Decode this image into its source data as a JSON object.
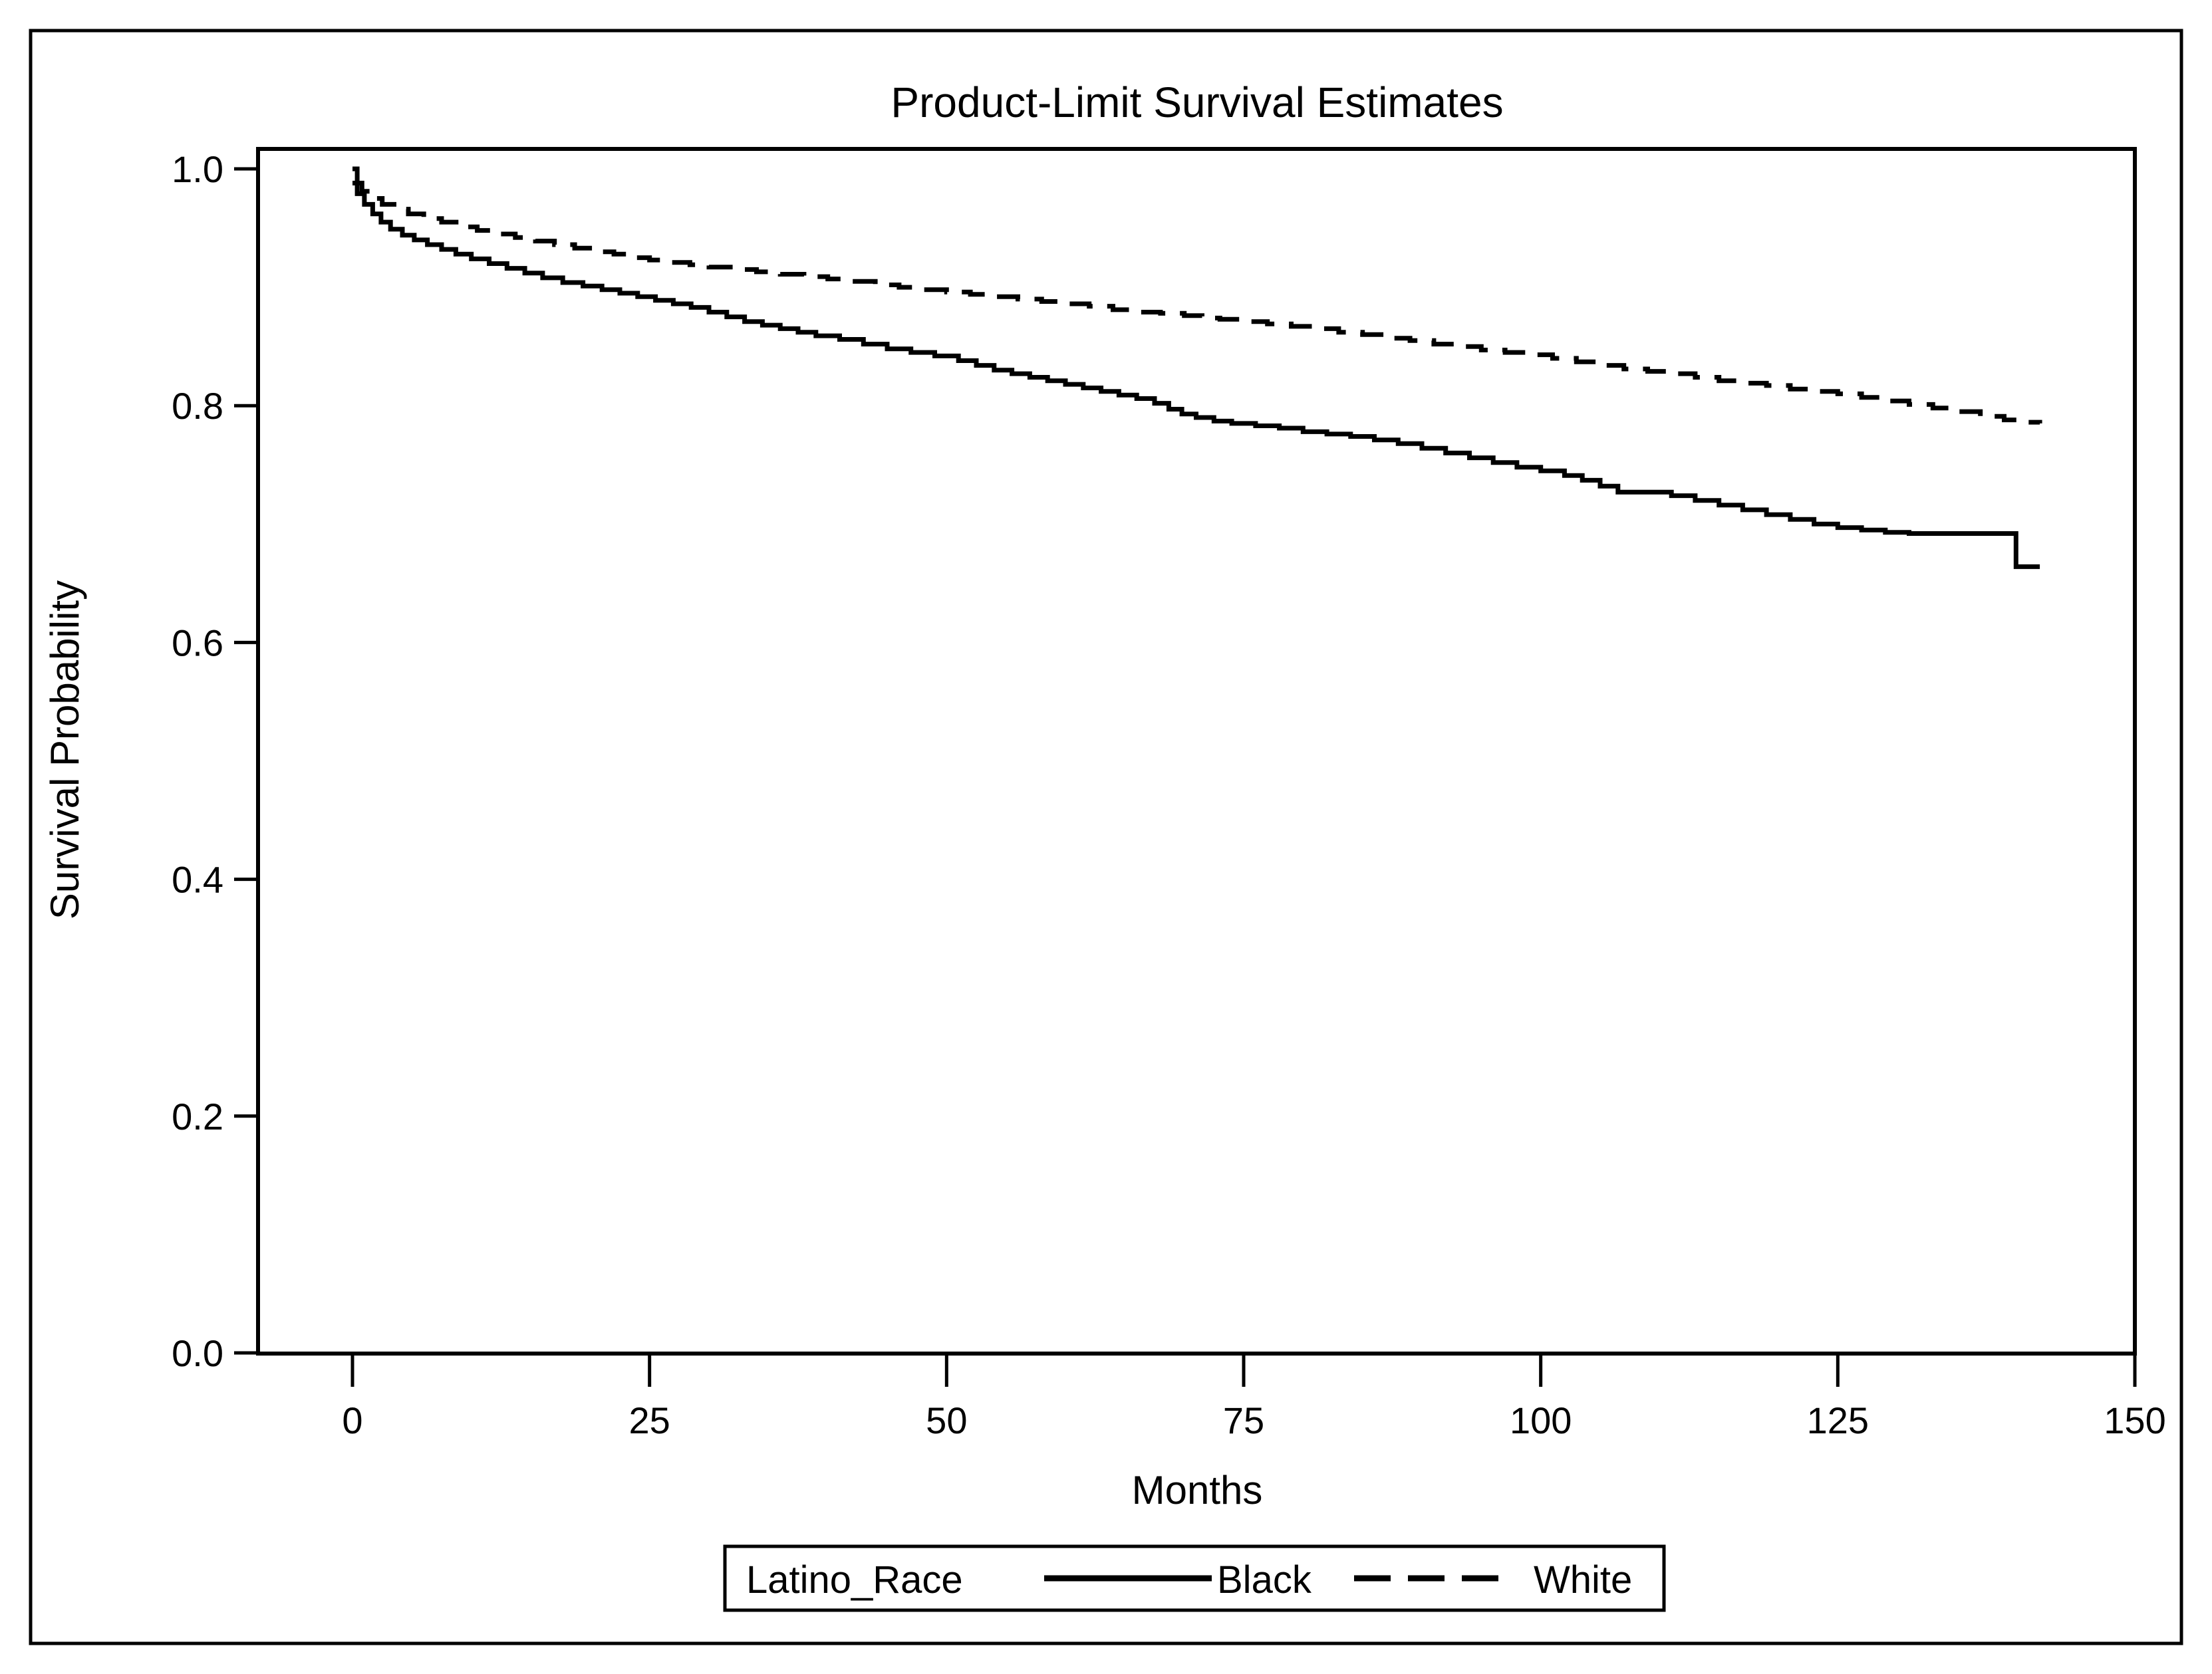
{
  "figure": {
    "title": "Product-Limit Survival Estimates",
    "background_color": "#ffffff",
    "foreground_color": "#000000"
  },
  "chart_data": {
    "type": "line",
    "subtype": "kaplan-meier-step",
    "title": "Product-Limit Survival Estimates",
    "xlabel": "Months",
    "ylabel": "Survival Probability",
    "xlim": [
      0,
      150
    ],
    "ylim": [
      0.0,
      1.0
    ],
    "grid": false,
    "x_ticks": [
      0,
      25,
      50,
      75,
      100,
      125,
      150
    ],
    "x_tick_labels": [
      "0",
      "25",
      "50",
      "75",
      "100",
      "125",
      "150"
    ],
    "y_ticks": [
      0.0,
      0.2,
      0.4,
      0.6,
      0.8,
      1.0
    ],
    "y_tick_labels": [
      "0.0",
      "0.2",
      "0.4",
      "0.6",
      "0.8",
      "1.0"
    ],
    "legend": {
      "title": "Latino_Race",
      "position": "bottom-center",
      "entries": [
        {
          "label": "Black",
          "line_style": "solid",
          "color": "#000000"
        },
        {
          "label": "White",
          "line_style": "dashed",
          "color": "#000000"
        }
      ]
    },
    "series": [
      {
        "name": "Black",
        "line_style": "solid",
        "color": "#000000",
        "points": [
          [
            0,
            1.0
          ],
          [
            0.4,
            0.979
          ],
          [
            1,
            0.97
          ],
          [
            1.7,
            0.962
          ],
          [
            2.4,
            0.955
          ],
          [
            3.2,
            0.949
          ],
          [
            4.2,
            0.944
          ],
          [
            5.2,
            0.94
          ],
          [
            6.3,
            0.936
          ],
          [
            7.5,
            0.932
          ],
          [
            8.7,
            0.928
          ],
          [
            10,
            0.924
          ],
          [
            11.5,
            0.92
          ],
          [
            13,
            0.916
          ],
          [
            14.5,
            0.912
          ],
          [
            16,
            0.908
          ],
          [
            17.7,
            0.904
          ],
          [
            19.4,
            0.901
          ],
          [
            21,
            0.898
          ],
          [
            22.5,
            0.895
          ],
          [
            24,
            0.892
          ],
          [
            25.5,
            0.889
          ],
          [
            27,
            0.886
          ],
          [
            28.5,
            0.883
          ],
          [
            30,
            0.879
          ],
          [
            31.5,
            0.875
          ],
          [
            33,
            0.871
          ],
          [
            34.5,
            0.868
          ],
          [
            36,
            0.865
          ],
          [
            37.5,
            0.862
          ],
          [
            39,
            0.859
          ],
          [
            41,
            0.856
          ],
          [
            43,
            0.852
          ],
          [
            45,
            0.848
          ],
          [
            47,
            0.845
          ],
          [
            49,
            0.842
          ],
          [
            51,
            0.838
          ],
          [
            52.5,
            0.834
          ],
          [
            54,
            0.83
          ],
          [
            55.5,
            0.827
          ],
          [
            57,
            0.824
          ],
          [
            58.5,
            0.821
          ],
          [
            60,
            0.818
          ],
          [
            61.5,
            0.815
          ],
          [
            63,
            0.812
          ],
          [
            64.5,
            0.809
          ],
          [
            66,
            0.806
          ],
          [
            67.5,
            0.802
          ],
          [
            68.7,
            0.797
          ],
          [
            69.8,
            0.793
          ],
          [
            71,
            0.79
          ],
          [
            72.5,
            0.787
          ],
          [
            74,
            0.785
          ],
          [
            76,
            0.783
          ],
          [
            78,
            0.781
          ],
          [
            80,
            0.778
          ],
          [
            82,
            0.776
          ],
          [
            84,
            0.774
          ],
          [
            86,
            0.771
          ],
          [
            88,
            0.768
          ],
          [
            90,
            0.764
          ],
          [
            92,
            0.76
          ],
          [
            94,
            0.756
          ],
          [
            96,
            0.752
          ],
          [
            98,
            0.748
          ],
          [
            100,
            0.745
          ],
          [
            102,
            0.741
          ],
          [
            103.5,
            0.737
          ],
          [
            105,
            0.732
          ],
          [
            106.5,
            0.727
          ],
          [
            111,
            0.724
          ],
          [
            113,
            0.72
          ],
          [
            115,
            0.716
          ],
          [
            117,
            0.712
          ],
          [
            119,
            0.708
          ],
          [
            121,
            0.704
          ],
          [
            123,
            0.7
          ],
          [
            125,
            0.697
          ],
          [
            127,
            0.695
          ],
          [
            129,
            0.693
          ],
          [
            131,
            0.692
          ],
          [
            140,
            0.664
          ],
          [
            142,
            0.664
          ]
        ]
      },
      {
        "name": "White",
        "line_style": "dashed",
        "color": "#000000",
        "points": [
          [
            0,
            0.988
          ],
          [
            0.8,
            0.981
          ],
          [
            1.6,
            0.975
          ],
          [
            2.5,
            0.97
          ],
          [
            3.5,
            0.966
          ],
          [
            4.7,
            0.962
          ],
          [
            6,
            0.958
          ],
          [
            7.5,
            0.955
          ],
          [
            9,
            0.951
          ],
          [
            10.5,
            0.948
          ],
          [
            12,
            0.945
          ],
          [
            13.7,
            0.942
          ],
          [
            15.4,
            0.939
          ],
          [
            17,
            0.936
          ],
          [
            18.7,
            0.933
          ],
          [
            20.4,
            0.93
          ],
          [
            22,
            0.928
          ],
          [
            23.5,
            0.925
          ],
          [
            25,
            0.923
          ],
          [
            26.7,
            0.921
          ],
          [
            28.4,
            0.919
          ],
          [
            30,
            0.917
          ],
          [
            32,
            0.915
          ],
          [
            34,
            0.913
          ],
          [
            36,
            0.911
          ],
          [
            38,
            0.909
          ],
          [
            40,
            0.907
          ],
          [
            42,
            0.905
          ],
          [
            44,
            0.902
          ],
          [
            46,
            0.9
          ],
          [
            48,
            0.898
          ],
          [
            50,
            0.896
          ],
          [
            52,
            0.894
          ],
          [
            54,
            0.892
          ],
          [
            56,
            0.89
          ],
          [
            58,
            0.888
          ],
          [
            60,
            0.886
          ],
          [
            62,
            0.884
          ],
          [
            64,
            0.881
          ],
          [
            66,
            0.879
          ],
          [
            68,
            0.878
          ],
          [
            70,
            0.876
          ],
          [
            71.5,
            0.874
          ],
          [
            73,
            0.873
          ],
          [
            75,
            0.871
          ],
          [
            77,
            0.869
          ],
          [
            79,
            0.867
          ],
          [
            81,
            0.865
          ],
          [
            83,
            0.862
          ],
          [
            85,
            0.86
          ],
          [
            87,
            0.857
          ],
          [
            89,
            0.855
          ],
          [
            91,
            0.852
          ],
          [
            93,
            0.85
          ],
          [
            95,
            0.847
          ],
          [
            97,
            0.845
          ],
          [
            99,
            0.843
          ],
          [
            101,
            0.84
          ],
          [
            103,
            0.837
          ],
          [
            105,
            0.834
          ],
          [
            107,
            0.831
          ],
          [
            109,
            0.829
          ],
          [
            111,
            0.827
          ],
          [
            113,
            0.824
          ],
          [
            115,
            0.821
          ],
          [
            117,
            0.819
          ],
          [
            119,
            0.817
          ],
          [
            121,
            0.814
          ],
          [
            123,
            0.812
          ],
          [
            125,
            0.81
          ],
          [
            127,
            0.807
          ],
          [
            129,
            0.804
          ],
          [
            131,
            0.801
          ],
          [
            133,
            0.798
          ],
          [
            135,
            0.795
          ],
          [
            137,
            0.791
          ],
          [
            139,
            0.788
          ],
          [
            141,
            0.786
          ],
          [
            142,
            0.785
          ]
        ]
      }
    ]
  }
}
